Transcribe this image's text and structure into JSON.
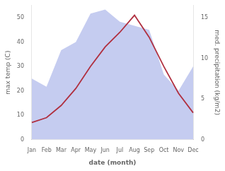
{
  "chart_data": {
    "type": "line",
    "categories": [
      "Jan",
      "Feb",
      "Mar",
      "Apr",
      "May",
      "Jun",
      "Jul",
      "Aug",
      "Sep",
      "Oct",
      "Nov",
      "Dec"
    ],
    "series": [
      {
        "type": "area",
        "axis": "y2",
        "color": "#c5ccf0",
        "values": [
          7.5,
          6.5,
          11,
          12,
          15.5,
          16,
          14.5,
          14,
          13.5,
          8,
          6,
          9
        ]
      },
      {
        "type": "line",
        "color": "#b03040",
        "values": [
          7,
          9,
          14,
          21,
          30,
          38,
          44,
          51,
          42,
          30,
          19,
          11
        ]
      }
    ],
    "xlabel": "date (month)",
    "ylabel": "max temp (C)",
    "y2label": "med. precipitation (kg/m2)",
    "ylim": [
      0,
      55
    ],
    "yticks": [
      0,
      10,
      20,
      30,
      40,
      50
    ],
    "y2lim": [
      0,
      16.5
    ],
    "y2ticks": [
      0,
      5,
      10,
      15
    ],
    "grid": false
  }
}
